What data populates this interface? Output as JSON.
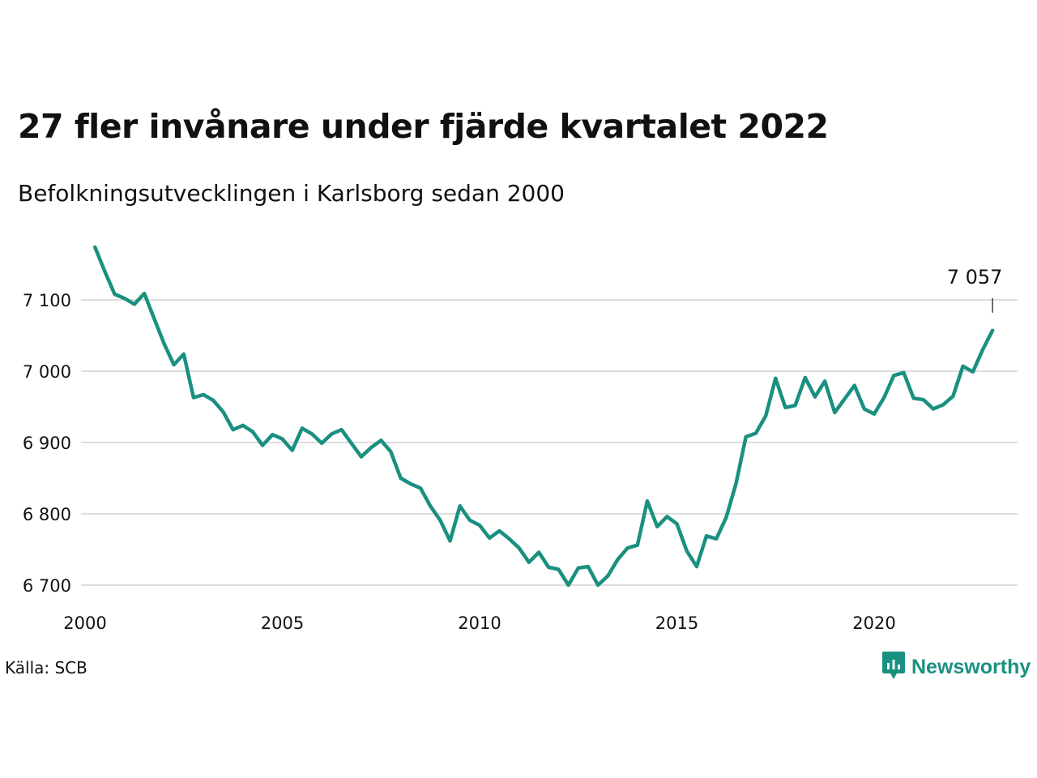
{
  "title": "27 fler invånare under fjärde kvartalet 2022",
  "subtitle": "Befolkningsutvecklingen i Karlsborg sedan 2000",
  "source": "Källa: SCB",
  "brand": "Newsworthy",
  "colors": {
    "line": "#1a9080",
    "grid": "#dddddd",
    "text": "#111111"
  },
  "chart_data": {
    "type": "line",
    "title": "27 fler invånare under fjärde kvartalet 2022",
    "subtitle": "Befolkningsutvecklingen i Karlsborg sedan 2000",
    "xlabel": "",
    "ylabel": "",
    "xlim": [
      2000,
      2023.5
    ],
    "ylim": [
      6690,
      7180
    ],
    "xticks": [
      2000,
      2005,
      2010,
      2015,
      2020
    ],
    "xtick_labels": [
      "2000",
      "2005",
      "2010",
      "2015",
      "2020"
    ],
    "yticks": [
      6700,
      6800,
      6900,
      7000,
      7100
    ],
    "ytick_labels": [
      "6 700",
      "6 800",
      "6 900",
      "7 000",
      "7 100"
    ],
    "grid": "horizontal",
    "last_value_label": "7 057",
    "series": [
      {
        "x": [
          2000.25,
          2000.5,
          2000.75,
          2001,
          2001.25,
          2001.5,
          2001.75,
          2002,
          2002.25,
          2002.5,
          2002.75,
          2003,
          2003.25,
          2003.5,
          2003.75,
          2004,
          2004.25,
          2004.5,
          2004.75,
          2005,
          2005.25,
          2005.5,
          2005.75,
          2006,
          2006.25,
          2006.5,
          2006.75,
          2007,
          2007.25,
          2007.5,
          2007.75,
          2008,
          2008.25,
          2008.5,
          2008.75,
          2009,
          2009.25,
          2009.5,
          2009.75,
          2010,
          2010.25,
          2010.5,
          2010.75,
          2011,
          2011.25,
          2011.5,
          2011.75,
          2012,
          2012.25,
          2012.5,
          2012.75,
          2013,
          2013.25,
          2013.5,
          2013.75,
          2014,
          2014.25,
          2014.5,
          2014.75,
          2015,
          2015.25,
          2015.5,
          2015.75,
          2016,
          2016.25,
          2016.5,
          2016.75,
          2017,
          2017.25,
          2017.5,
          2017.75,
          2018,
          2018.25,
          2018.5,
          2018.75,
          2019,
          2019.25,
          2019.5,
          2019.75,
          2020,
          2020.25,
          2020.5,
          2020.75,
          2021,
          2021.25,
          2021.5,
          2021.75,
          2022,
          2022.25,
          2022.5,
          2022.75,
          2023
        ],
        "y": [
          7174,
          7140,
          7108,
          7102,
          7094,
          7109,
          7074,
          7039,
          7009,
          7024,
          6963,
          6967,
          6959,
          6943,
          6918,
          6924,
          6915,
          6896,
          6911,
          6905,
          6889,
          6920,
          6912,
          6899,
          6912,
          6918,
          6899,
          6880,
          6893,
          6903,
          6887,
          6850,
          6842,
          6836,
          6811,
          6791,
          6762,
          6811,
          6791,
          6784,
          6766,
          6776,
          6765,
          6752,
          6732,
          6746,
          6725,
          6722,
          6700,
          6724,
          6726,
          6700,
          6713,
          6736,
          6752,
          6756,
          6818,
          6782,
          6796,
          6786,
          6748,
          6726,
          6769,
          6765,
          6795,
          6843,
          6908,
          6913,
          6937,
          6990,
          6949,
          6952,
          6991,
          6964,
          6986,
          6942,
          6961,
          6980,
          6947,
          6940,
          6963,
          6994,
          6998,
          6962,
          6960,
          6947,
          6953,
          6965,
          7007,
          6999,
          7030,
          7057
        ]
      }
    ]
  }
}
